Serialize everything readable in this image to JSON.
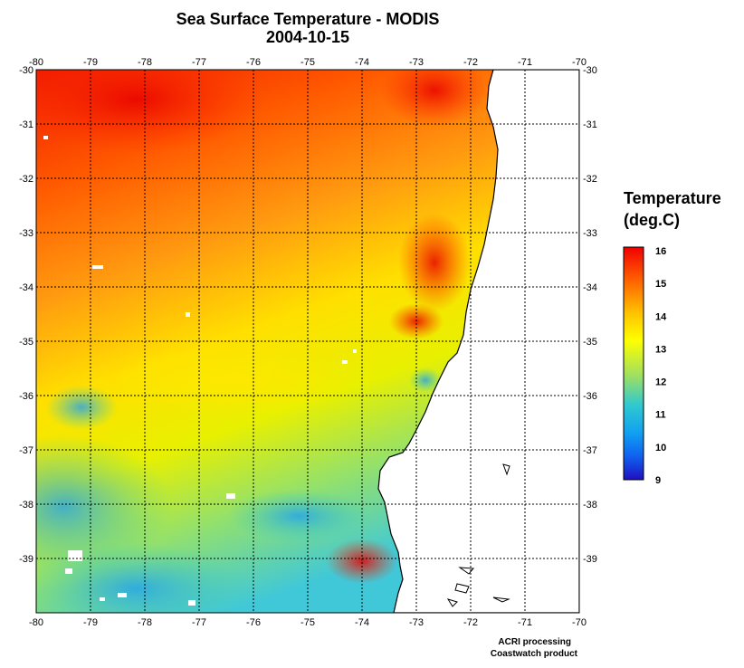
{
  "title": "Sea Surface Temperature - MODIS",
  "date": "2004-10-15",
  "legend": {
    "title_line1": "Temperature",
    "title_line2": "(deg.C)",
    "ticks": [
      "16",
      "15",
      "14",
      "13",
      "12",
      "11",
      "10",
      "9"
    ],
    "min": 9,
    "max": 16
  },
  "axes": {
    "lon_ticks": [
      "-80",
      "-79",
      "-78",
      "-77",
      "-76",
      "-75",
      "-74",
      "-73",
      "-72",
      "-71",
      "-70"
    ],
    "lat_ticks": [
      "-30",
      "-31",
      "-32",
      "-33",
      "-34",
      "-35",
      "-36",
      "-37",
      "-38",
      "-39"
    ],
    "lon_range": [
      -80,
      -70
    ],
    "lat_range": [
      -30,
      -40
    ]
  },
  "credits": {
    "line1": "ACRI processing",
    "line2": "Coastwatch product"
  },
  "colors": {
    "land": "#ffffff",
    "coastline": "#000000",
    "grid": "#000000",
    "palette": [
      "#1010d0",
      "#1060f0",
      "#10b0f0",
      "#40d8b0",
      "#a0e060",
      "#ffff00",
      "#ffc000",
      "#ff8000",
      "#ff3000",
      "#f00000"
    ]
  }
}
